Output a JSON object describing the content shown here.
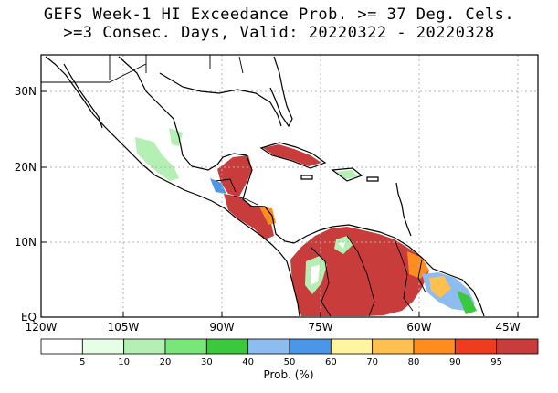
{
  "title": {
    "line1": "GEFS Week-1 HI Exceedance Prob. >= 37 Deg. Cels.",
    "line2": ">=3 Consec. Days, Valid: 20220322 - 20220328"
  },
  "axes": {
    "lat_labels": [
      "30N",
      "20N",
      "10N",
      "EQ"
    ],
    "lon_labels": [
      "120W",
      "105W",
      "90W",
      "75W",
      "60W",
      "45W"
    ]
  },
  "colorbar": {
    "label": "Prob. (%)",
    "ticks": [
      "5",
      "10",
      "20",
      "30",
      "40",
      "50",
      "60",
      "70",
      "80",
      "90",
      "95"
    ],
    "colors": [
      "#ffffff",
      "#e6fde6",
      "#b4f0b4",
      "#78e678",
      "#3cc83c",
      "#8cbcf0",
      "#4a96e8",
      "#fff5a0",
      "#ffc050",
      "#ff8c1e",
      "#f03c1e",
      "#c83c3c"
    ]
  },
  "map_colors": {
    "land_high_prob": "#c83c3c",
    "land_mid_prob": "#ff8c1e",
    "land_low_prob": "#b4f0b4",
    "coastline": "#000000",
    "grid": "#b0b0b0"
  }
}
